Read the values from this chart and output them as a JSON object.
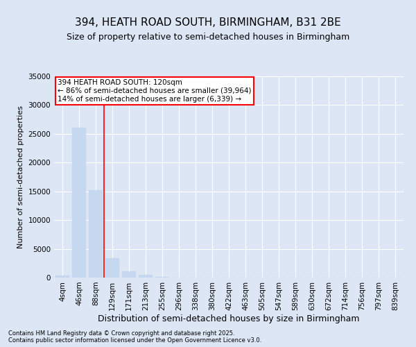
{
  "title": "394, HEATH ROAD SOUTH, BIRMINGHAM, B31 2BE",
  "subtitle": "Size of property relative to semi-detached houses in Birmingham",
  "xlabel": "Distribution of semi-detached houses by size in Birmingham",
  "ylabel": "Number of semi-detached properties",
  "categories": [
    "4sqm",
    "46sqm",
    "88sqm",
    "129sqm",
    "171sqm",
    "213sqm",
    "255sqm",
    "296sqm",
    "338sqm",
    "380sqm",
    "422sqm",
    "463sqm",
    "505sqm",
    "547sqm",
    "589sqm",
    "630sqm",
    "672sqm",
    "714sqm",
    "756sqm",
    "797sqm",
    "839sqm"
  ],
  "values": [
    400,
    26100,
    15200,
    3350,
    1100,
    500,
    170,
    60,
    20,
    8,
    3,
    1,
    0,
    0,
    0,
    0,
    0,
    0,
    0,
    0,
    0
  ],
  "bar_color": "#c5d8f0",
  "vline_color": "red",
  "vline_x": 2.5,
  "annotation_text": "394 HEATH ROAD SOUTH: 120sqm\n← 86% of semi-detached houses are smaller (39,964)\n14% of semi-detached houses are larger (6,339) →",
  "annotation_box_edgecolor": "red",
  "background_color": "#dce6f5",
  "plot_bg_color": "#dce6f5",
  "footer_text": "Contains HM Land Registry data © Crown copyright and database right 2025.\nContains public sector information licensed under the Open Government Licence v3.0.",
  "ylim": [
    0,
    35000
  ],
  "yticks": [
    0,
    5000,
    10000,
    15000,
    20000,
    25000,
    30000,
    35000
  ],
  "title_fontsize": 11,
  "subtitle_fontsize": 9,
  "ylabel_fontsize": 8,
  "xlabel_fontsize": 9,
  "tick_fontsize": 7.5,
  "annotation_fontsize": 7.5,
  "footer_fontsize": 6
}
